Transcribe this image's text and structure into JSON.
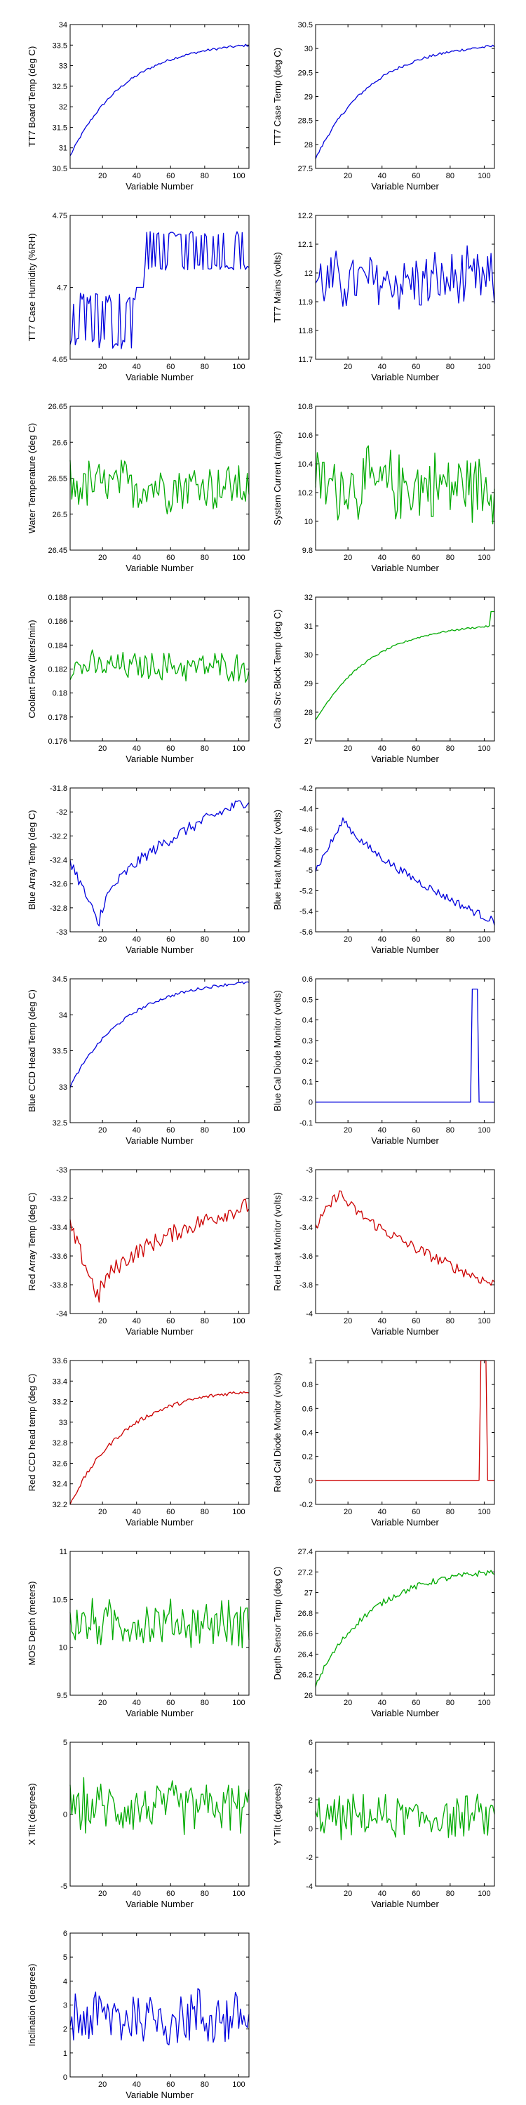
{
  "chart_data": [
    {
      "type": "line",
      "xlabel": "Variable Number",
      "ylabel": "TT7 Board Temp (deg C)",
      "xlim": [
        1,
        106
      ],
      "ylim": [
        30.5,
        34
      ],
      "yticks": [
        30.5,
        31,
        31.5,
        32,
        32.5,
        33,
        33.5,
        34
      ],
      "ytick_labels": [
        "30.5",
        "31",
        "31.5",
        "32",
        "32.5",
        "33",
        "33.5",
        "34"
      ],
      "xticks": [
        20,
        40,
        60,
        80,
        100
      ],
      "xtick_labels": [
        "20",
        "40",
        "60",
        "80",
        "100"
      ],
      "color": "#0000dd",
      "shape": {
        "kind": "rising",
        "from": 30.8,
        "to": 33.5,
        "noise": 0.03
      },
      "series": [
        {
          "values": []
        }
      ]
    },
    {
      "type": "line",
      "xlabel": "Variable Number",
      "ylabel": "TT7 Case Temp (deg C)",
      "xlim": [
        1,
        106
      ],
      "ylim": [
        27.5,
        30.5
      ],
      "yticks": [
        27.5,
        28,
        28.5,
        29,
        29.5,
        30,
        30.5
      ],
      "ytick_labels": [
        "27.5",
        "28",
        "28.5",
        "29",
        "29.5",
        "30",
        "30.5"
      ],
      "xticks": [
        20,
        40,
        60,
        80,
        100
      ],
      "xtick_labels": [
        "20",
        "40",
        "60",
        "80",
        "100"
      ],
      "color": "#0000dd",
      "shape": {
        "kind": "rising",
        "from": 27.7,
        "to": 30.05,
        "noise": 0.03
      },
      "series": [
        {
          "values": []
        }
      ]
    },
    {
      "type": "line",
      "xlabel": "Variable Number",
      "ylabel": "TT7 Case Humidity (%RH)",
      "xlim": [
        1,
        106
      ],
      "ylim": [
        4.65,
        4.75
      ],
      "yticks": [
        4.65,
        4.7,
        4.75
      ],
      "ytick_labels": [
        "4.65",
        "4.7",
        "4.75"
      ],
      "xticks": [
        20,
        40,
        60,
        80,
        100
      ],
      "xtick_labels": [
        "20",
        "40",
        "60",
        "80",
        "100"
      ],
      "color": "#0000dd",
      "shape": {
        "kind": "humidity"
      },
      "series": [
        {
          "values": []
        }
      ]
    },
    {
      "type": "line",
      "xlabel": "Variable Number",
      "ylabel": "TT7 Mains  (volts)",
      "xlim": [
        1,
        106
      ],
      "ylim": [
        11.7,
        12.2
      ],
      "yticks": [
        11.7,
        11.8,
        11.9,
        12,
        12.1,
        12.2
      ],
      "ytick_labels": [
        "11.7",
        "11.8",
        "11.9",
        "12",
        "12.1",
        "12.2"
      ],
      "xticks": [
        20,
        40,
        60,
        80,
        100
      ],
      "xtick_labels": [
        "20",
        "40",
        "60",
        "80",
        "100"
      ],
      "color": "#0000dd",
      "shape": {
        "kind": "noisy",
        "base": 11.97,
        "amp": 0.13
      },
      "series": [
        {
          "values": []
        }
      ]
    },
    {
      "type": "line",
      "xlabel": "Variable Number",
      "ylabel": "Water Temperature (deg C)",
      "xlim": [
        1,
        106
      ],
      "ylim": [
        26.45,
        26.65
      ],
      "yticks": [
        26.45,
        26.5,
        26.55,
        26.6,
        26.65
      ],
      "ytick_labels": [
        "26.45",
        "26.5",
        "26.55",
        "26.6",
        "26.65"
      ],
      "xticks": [
        20,
        40,
        60,
        80,
        100
      ],
      "xtick_labels": [
        "20",
        "40",
        "60",
        "80",
        "100"
      ],
      "color": "#00aa00",
      "shape": {
        "kind": "noisy",
        "base": 26.54,
        "amp": 0.045
      },
      "series": [
        {
          "values": []
        }
      ]
    },
    {
      "type": "line",
      "xlabel": "Variable Number",
      "ylabel": "System Current (amps)",
      "xlim": [
        1,
        106
      ],
      "ylim": [
        9.8,
        10.8
      ],
      "yticks": [
        9.8,
        10,
        10.2,
        10.4,
        10.6,
        10.8
      ],
      "ytick_labels": [
        "9.8",
        "10",
        "10.2",
        "10.4",
        "10.6",
        "10.8"
      ],
      "xticks": [
        20,
        40,
        60,
        80,
        100
      ],
      "xtick_labels": [
        "20",
        "40",
        "60",
        "80",
        "100"
      ],
      "color": "#00aa00",
      "shape": {
        "kind": "noisy",
        "base": 10.25,
        "amp": 0.3
      },
      "series": [
        {
          "values": []
        }
      ]
    },
    {
      "type": "line",
      "xlabel": "Variable Number",
      "ylabel": "Coolant Flow (liters/min)",
      "xlim": [
        1,
        106
      ],
      "ylim": [
        0.176,
        0.188
      ],
      "yticks": [
        0.176,
        0.178,
        0.18,
        0.182,
        0.184,
        0.186,
        0.188
      ],
      "ytick_labels": [
        "0.176",
        "0.178",
        "0.18",
        "0.182",
        "0.184",
        "0.186",
        "0.188"
      ],
      "xticks": [
        20,
        40,
        60,
        80,
        100
      ],
      "xtick_labels": [
        "20",
        "40",
        "60",
        "80",
        "100"
      ],
      "color": "#00aa00",
      "shape": {
        "kind": "noisy",
        "base": 0.1822,
        "amp": 0.0015
      },
      "series": [
        {
          "values": []
        }
      ]
    },
    {
      "type": "line",
      "xlabel": "Variable Number",
      "ylabel": "Calib Src Block Temp (deg C)",
      "xlim": [
        1,
        106
      ],
      "ylim": [
        27,
        32
      ],
      "yticks": [
        27,
        28,
        29,
        30,
        31,
        32
      ],
      "ytick_labels": [
        "27",
        "28",
        "29",
        "30",
        "31",
        "32"
      ],
      "xticks": [
        20,
        40,
        60,
        80,
        100
      ],
      "xtick_labels": [
        "20",
        "40",
        "60",
        "80",
        "100"
      ],
      "color": "#00aa00",
      "shape": {
        "kind": "rising",
        "from": 27.7,
        "to": 31,
        "noise": 0.03,
        "endJump": 31.5
      },
      "series": [
        {
          "values": []
        }
      ]
    },
    {
      "type": "line",
      "xlabel": "Variable Number",
      "ylabel": "Blue Array Temp (deg C)",
      "xlim": [
        1,
        106
      ],
      "ylim": [
        -33,
        -31.8
      ],
      "yticks": [
        -33,
        -32.8,
        -32.6,
        -32.4,
        -32.2,
        -32,
        -31.8
      ],
      "ytick_labels": [
        "-33",
        "-32.8",
        "-32.6",
        "-32.4",
        "-32.2",
        "-32",
        "-31.8"
      ],
      "xticks": [
        20,
        40,
        60,
        80,
        100
      ],
      "xtick_labels": [
        "20",
        "40",
        "60",
        "80",
        "100"
      ],
      "color": "#0000dd",
      "shape": {
        "kind": "dipRise",
        "start": -32.4,
        "min": -32.95,
        "minAt": 18,
        "end": -31.9,
        "noise": 0.05
      },
      "series": [
        {
          "values": []
        }
      ]
    },
    {
      "type": "line",
      "xlabel": "Variable Number",
      "ylabel": "Blue Heat Monitor (volts)",
      "xlim": [
        1,
        106
      ],
      "ylim": [
        -5.6,
        -4.2
      ],
      "yticks": [
        -5.6,
        -5.4,
        -5.2,
        -5,
        -4.8,
        -4.6,
        -4.4,
        -4.2
      ],
      "ytick_labels": [
        "-5.6",
        "-5.4",
        "-5.2",
        "-5",
        "-4.8",
        "-4.6",
        "-4.4",
        "-4.2"
      ],
      "xticks": [
        20,
        40,
        60,
        80,
        100
      ],
      "xtick_labels": [
        "20",
        "40",
        "60",
        "80",
        "100"
      ],
      "color": "#0000dd",
      "shape": {
        "kind": "peakFall",
        "start": -5,
        "peak": -4.5,
        "peakAt": 18,
        "end": -5.5,
        "noise": 0.04
      },
      "series": [
        {
          "values": []
        }
      ]
    },
    {
      "type": "line",
      "xlabel": "Variable Number",
      "ylabel": "Blue CCD Head Temp (deg C)",
      "xlim": [
        1,
        106
      ],
      "ylim": [
        32.5,
        34.5
      ],
      "yticks": [
        32.5,
        33,
        33.5,
        34,
        34.5
      ],
      "ytick_labels": [
        "32.5",
        "33",
        "33.5",
        "34",
        "34.5"
      ],
      "xticks": [
        20,
        40,
        60,
        80,
        100
      ],
      "xtick_labels": [
        "20",
        "40",
        "60",
        "80",
        "100"
      ],
      "color": "#0000dd",
      "shape": {
        "kind": "rising",
        "from": 33,
        "to": 34.45,
        "noise": 0.02
      },
      "series": [
        {
          "values": []
        }
      ]
    },
    {
      "type": "line",
      "xlabel": "Variable Number",
      "ylabel": "Blue Cal Diode Monitor (volts)",
      "xlim": [
        1,
        106
      ],
      "ylim": [
        -0.1,
        0.6
      ],
      "yticks": [
        -0.1,
        0,
        0.1,
        0.2,
        0.3,
        0.4,
        0.5,
        0.6
      ],
      "ytick_labels": [
        "-0.1",
        "0",
        "0.1",
        "0.2",
        "0.3",
        "0.4",
        "0.5",
        "0.6"
      ],
      "xticks": [
        20,
        40,
        60,
        80,
        100
      ],
      "xtick_labels": [
        "20",
        "40",
        "60",
        "80",
        "100"
      ],
      "color": "#0000dd",
      "shape": {
        "kind": "pulse",
        "base": 0,
        "high": 0.55,
        "from": 93,
        "to": 96
      },
      "series": [
        {
          "values": []
        }
      ]
    },
    {
      "type": "line",
      "xlabel": "Variable Number",
      "ylabel": "Red Array Temp (deg C)",
      "xlim": [
        1,
        106
      ],
      "ylim": [
        -34,
        -33
      ],
      "yticks": [
        -34,
        -33.8,
        -33.6,
        -33.4,
        -33.2,
        -33
      ],
      "ytick_labels": [
        "-34",
        "-33.8",
        "-33.6",
        "-33.4",
        "-33.2",
        "-33"
      ],
      "xticks": [
        20,
        40,
        60,
        80,
        100
      ],
      "xtick_labels": [
        "20",
        "40",
        "60",
        "80",
        "100"
      ],
      "color": "#cc0000",
      "shape": {
        "kind": "dipRise",
        "start": -33.4,
        "min": -33.9,
        "minAt": 18,
        "end": -33.25,
        "noise": 0.06
      },
      "series": [
        {
          "values": []
        }
      ]
    },
    {
      "type": "line",
      "xlabel": "Variable Number",
      "ylabel": "Red Heat Monitor (volts)",
      "xlim": [
        1,
        106
      ],
      "ylim": [
        -4,
        -3
      ],
      "yticks": [
        -4,
        -3.8,
        -3.6,
        -3.4,
        -3.2,
        -3
      ],
      "ytick_labels": [
        "-4",
        "-3.8",
        "-3.6",
        "-3.4",
        "-3.2",
        "-3"
      ],
      "xticks": [
        20,
        40,
        60,
        80,
        100
      ],
      "xtick_labels": [
        "20",
        "40",
        "60",
        "80",
        "100"
      ],
      "color": "#cc0000",
      "shape": {
        "kind": "peakFall",
        "start": -3.4,
        "peak": -3.15,
        "peakAt": 15,
        "end": -3.8,
        "noise": 0.04
      },
      "series": [
        {
          "values": []
        }
      ]
    },
    {
      "type": "line",
      "xlabel": "Variable Number",
      "ylabel": "Red CCD head temp (deg C)",
      "xlim": [
        1,
        106
      ],
      "ylim": [
        32.2,
        33.6
      ],
      "yticks": [
        32.2,
        32.4,
        32.6,
        32.8,
        33,
        33.2,
        33.4,
        33.6
      ],
      "ytick_labels": [
        "32.2",
        "32.4",
        "32.6",
        "32.8",
        "33",
        "33.2",
        "33.4",
        "33.6"
      ],
      "xticks": [
        20,
        40,
        60,
        80,
        100
      ],
      "xtick_labels": [
        "20",
        "40",
        "60",
        "80",
        "100"
      ],
      "color": "#cc0000",
      "shape": {
        "kind": "rising",
        "from": 32.2,
        "to": 33.3,
        "noise": 0.02
      },
      "series": [
        {
          "values": []
        }
      ]
    },
    {
      "type": "line",
      "xlabel": "Variable Number",
      "ylabel": "Red Cal Diode Monitor (volts)",
      "xlim": [
        1,
        106
      ],
      "ylim": [
        -0.2,
        1
      ],
      "yticks": [
        -0.2,
        0,
        0.2,
        0.4,
        0.6,
        0.8,
        1
      ],
      "ytick_labels": [
        "-0.2",
        "0",
        "0.2",
        "0.4",
        "0.6",
        "0.8",
        "1"
      ],
      "xticks": [
        20,
        40,
        60,
        80,
        100
      ],
      "xtick_labels": [
        "20",
        "40",
        "60",
        "80",
        "100"
      ],
      "color": "#cc0000",
      "shape": {
        "kind": "pulse",
        "base": 0,
        "high": 1,
        "from": 98,
        "to": 101
      },
      "series": [
        {
          "values": []
        }
      ]
    },
    {
      "type": "line",
      "xlabel": "Variable Number",
      "ylabel": "MOS Depth  (meters)",
      "xlim": [
        1,
        106
      ],
      "ylim": [
        9.5,
        11
      ],
      "yticks": [
        9.5,
        10,
        10.5,
        11
      ],
      "ytick_labels": [
        "9.5",
        "10",
        "10.5",
        "11"
      ],
      "xticks": [
        20,
        40,
        60,
        80,
        100
      ],
      "xtick_labels": [
        "20",
        "40",
        "60",
        "80",
        "100"
      ],
      "color": "#00aa00",
      "shape": {
        "kind": "noisy",
        "base": 10.25,
        "amp": 0.3
      },
      "series": [
        {
          "values": []
        }
      ]
    },
    {
      "type": "line",
      "xlabel": "Variable Number",
      "ylabel": "Depth Sensor Temp (deg C)",
      "xlim": [
        1,
        106
      ],
      "ylim": [
        26,
        27.4
      ],
      "yticks": [
        26,
        26.2,
        26.4,
        26.6,
        26.8,
        27,
        27.2,
        27.4
      ],
      "ytick_labels": [
        "26",
        "26.2",
        "26.4",
        "26.6",
        "26.8",
        "27",
        "27.2",
        "27.4"
      ],
      "xticks": [
        20,
        40,
        60,
        80,
        100
      ],
      "xtick_labels": [
        "20",
        "40",
        "60",
        "80",
        "100"
      ],
      "color": "#00aa00",
      "shape": {
        "kind": "rising",
        "from": 26.1,
        "to": 27.2,
        "noise": 0.03
      },
      "series": [
        {
          "values": []
        }
      ]
    },
    {
      "type": "line",
      "xlabel": "Variable Number",
      "ylabel": "X Tilt  (degrees)",
      "xlim": [
        1,
        106
      ],
      "ylim": [
        -5,
        5
      ],
      "yticks": [
        -5,
        0,
        5
      ],
      "ytick_labels": [
        "-5",
        "0",
        "5"
      ],
      "xticks": [
        20,
        40,
        60,
        80,
        100
      ],
      "xtick_labels": [
        "20",
        "40",
        "60",
        "80",
        "100"
      ],
      "color": "#00aa00",
      "shape": {
        "kind": "noisy",
        "base": 0.5,
        "amp": 2.2
      },
      "series": [
        {
          "values": []
        }
      ]
    },
    {
      "type": "line",
      "xlabel": "Variable Number",
      "ylabel": "Y Tilt  (degrees)",
      "xlim": [
        1,
        106
      ],
      "ylim": [
        -4,
        6
      ],
      "yticks": [
        -4,
        -2,
        0,
        2,
        4,
        6
      ],
      "ytick_labels": [
        "-4",
        "-2",
        "0",
        "2",
        "4",
        "6"
      ],
      "xticks": [
        20,
        40,
        60,
        80,
        100
      ],
      "xtick_labels": [
        "20",
        "40",
        "60",
        "80",
        "100"
      ],
      "color": "#00aa00",
      "shape": {
        "kind": "noisy",
        "base": 0.8,
        "amp": 1.8
      },
      "series": [
        {
          "values": []
        }
      ]
    },
    {
      "type": "line",
      "xlabel": "Variable Number",
      "ylabel": "Inclination  (degrees)",
      "xlim": [
        1,
        106
      ],
      "ylim": [
        0,
        6
      ],
      "yticks": [
        0,
        1,
        2,
        3,
        4,
        5,
        6
      ],
      "ytick_labels": [
        "0",
        "1",
        "2",
        "3",
        "4",
        "5",
        "6"
      ],
      "xticks": [
        20,
        40,
        60,
        80,
        100
      ],
      "xtick_labels": [
        "20",
        "40",
        "60",
        "80",
        "100"
      ],
      "color": "#0000dd",
      "shape": {
        "kind": "noisy",
        "base": 2.5,
        "amp": 1.6
      },
      "series": [
        {
          "values": []
        }
      ]
    }
  ]
}
